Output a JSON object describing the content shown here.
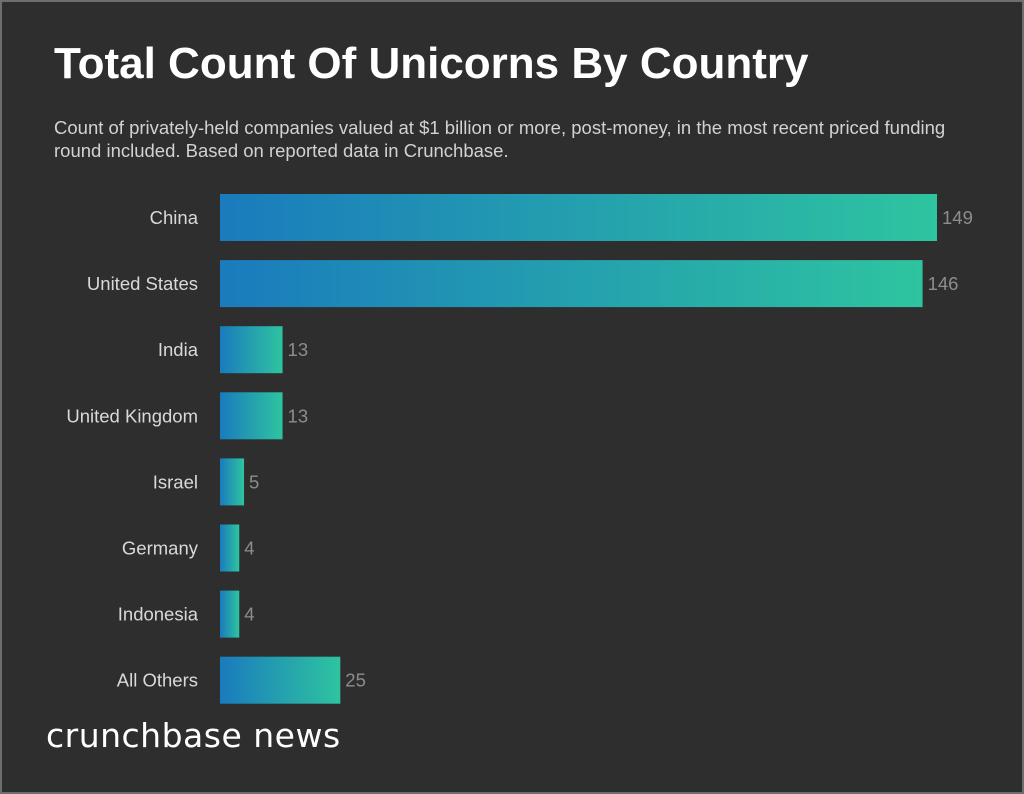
{
  "page": {
    "background": "#2e2e2e",
    "border_color": "#6e6e6e"
  },
  "logo": {
    "text": "crunchbase news"
  },
  "chart_data": {
    "type": "bar",
    "orientation": "horizontal",
    "title": "Total Count Of Unicorns By Country",
    "subtitle": "Count of privately-held companies valued at $1 billion or more, post-money, in the most recent priced funding round included. Based on reported data in Crunchbase.",
    "categories": [
      "China",
      "United States",
      "India",
      "United Kingdom",
      "Israel",
      "Germany",
      "Indonesia",
      "All Others"
    ],
    "values": [
      149,
      146,
      13,
      13,
      5,
      4,
      4,
      25
    ],
    "xlabel": "",
    "ylabel": "",
    "xlim": [
      0,
      149
    ],
    "grid": false,
    "legend": "none",
    "bar_gradient": [
      "#1a7bbd",
      "#2ec4a0"
    ]
  }
}
